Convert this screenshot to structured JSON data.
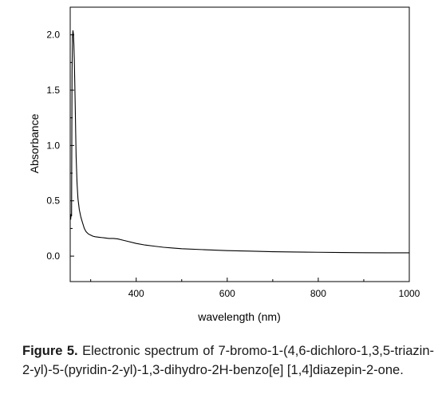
{
  "chart_data": {
    "type": "line",
    "xlabel": "wavelength (nm)",
    "ylabel": "Absorbance",
    "xlim": [
      255,
      1000
    ],
    "ylim": [
      -0.23,
      2.25
    ],
    "x_ticks": [
      400,
      600,
      800,
      1000
    ],
    "x_tick_labels": [
      "400",
      "600",
      "800",
      "1000"
    ],
    "y_ticks": [
      0.0,
      0.5,
      1.0,
      1.5,
      2.0
    ],
    "y_tick_labels": [
      "0.0",
      "0.5",
      "1.0",
      "1.5",
      "2.0"
    ],
    "grid": false,
    "legend": "none",
    "line_color": "#000000",
    "series": [
      {
        "x": [
          256,
          257,
          258,
          259,
          260,
          261,
          262,
          263,
          264,
          265,
          266,
          267,
          268,
          270,
          272,
          275,
          278,
          280,
          283,
          286,
          290,
          295,
          300,
          305,
          310,
          320,
          330,
          340,
          350,
          360,
          370,
          380,
          400,
          420,
          440,
          460,
          480,
          500,
          550,
          600,
          650,
          700,
          750,
          800,
          850,
          900,
          950,
          1000
        ],
        "y": [
          0.33,
          0.38,
          0.36,
          1.65,
          1.98,
          2.04,
          2.01,
          1.92,
          1.78,
          1.58,
          1.36,
          1.12,
          0.9,
          0.66,
          0.52,
          0.42,
          0.36,
          0.33,
          0.29,
          0.25,
          0.22,
          0.2,
          0.19,
          0.18,
          0.175,
          0.17,
          0.165,
          0.16,
          0.16,
          0.155,
          0.145,
          0.135,
          0.115,
          0.1,
          0.09,
          0.08,
          0.073,
          0.067,
          0.058,
          0.05,
          0.045,
          0.04,
          0.037,
          0.035,
          0.033,
          0.031,
          0.03,
          0.03
        ]
      }
    ]
  },
  "caption": {
    "label": "Figure 5.",
    "text": "Electronic spectrum of 7-bromo-1-(4,6-dichloro-1,3,5-triazin-2-yl)-5-(pyridin-2-yl)-1,3-dihydro-2H-benzo[e] [1,4]diazepin-2-one."
  }
}
